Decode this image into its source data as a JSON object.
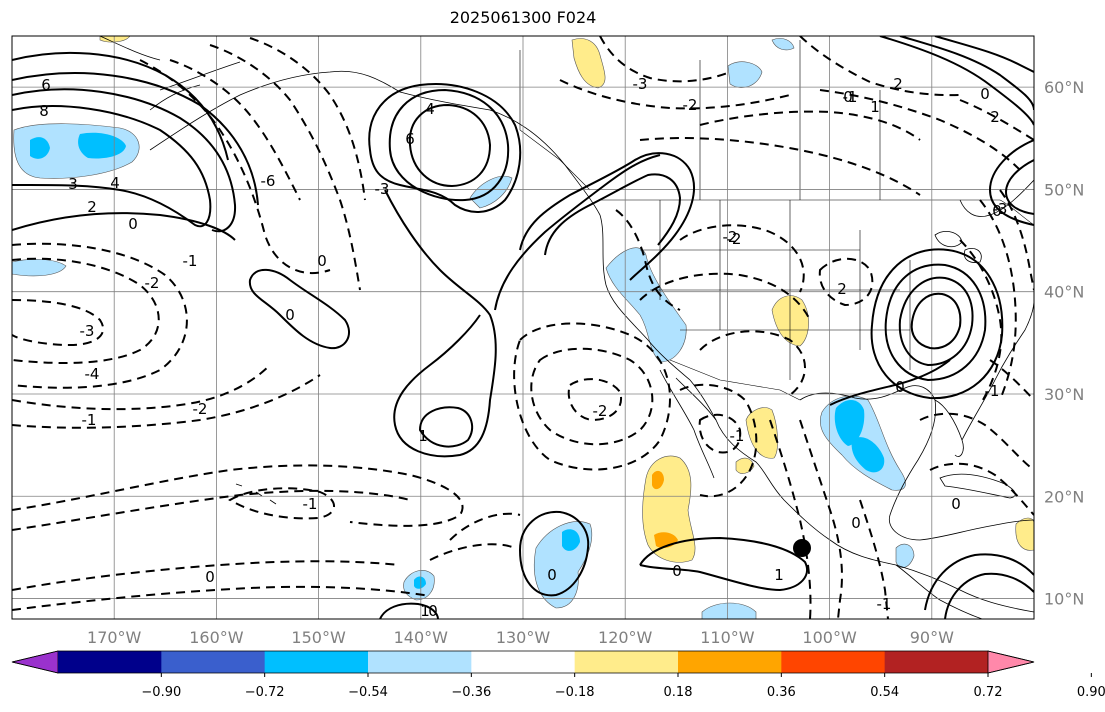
{
  "title": "2025061300 F024",
  "map": {
    "lat_labels": [
      "60°N",
      "50°N",
      "40°N",
      "30°N",
      "20°N",
      "10°N"
    ],
    "lat_values": [
      60,
      50,
      40,
      30,
      20,
      10
    ],
    "lon_labels": [
      "170°W",
      "160°W",
      "150°W",
      "140°W",
      "130°W",
      "120°W",
      "110°W",
      "100°W",
      "90°W"
    ],
    "lon_values": [
      -170,
      -160,
      -150,
      -140,
      -130,
      -120,
      -110,
      -100,
      -90
    ],
    "extent": {
      "lon_min": -180,
      "lon_max": -80,
      "lat_min": 8,
      "lat_max": 65
    }
  },
  "contour_labels": [
    "6",
    "8",
    "3",
    "4",
    "2",
    "0",
    "-1",
    "-2",
    "-3",
    "-4",
    "6",
    "4",
    "0",
    "-2",
    "-1",
    "0",
    "1",
    "0",
    "-2",
    "-3",
    "-2",
    "0",
    "-1",
    "-2",
    "-6",
    "-3",
    "2",
    "0",
    "2",
    "1",
    "0",
    "2",
    "0",
    "-1",
    "-3",
    "0",
    "-1",
    "-1",
    "-2",
    "0",
    "0",
    "1",
    "0",
    "-1",
    "1",
    "0"
  ],
  "colorbar": {
    "colors": [
      "#9a32cd",
      "#00008b",
      "#3a5fcd",
      "#00bfff",
      "#b0e2ff",
      "#ffffff",
      "#ffec8b",
      "#ffa500",
      "#ff4500",
      "#b22222",
      "#ff88aa"
    ],
    "tick_labels": [
      "−0.90",
      "−0.72",
      "−0.54",
      "−0.36",
      "−0.18",
      "0.18",
      "0.36",
      "0.54",
      "0.72",
      "0.90"
    ]
  },
  "fill_colors": {
    "light_blue": "#b0e2ff",
    "mid_blue": "#00bfff",
    "light_yellow": "#ffec8b",
    "orange": "#ffa500"
  }
}
